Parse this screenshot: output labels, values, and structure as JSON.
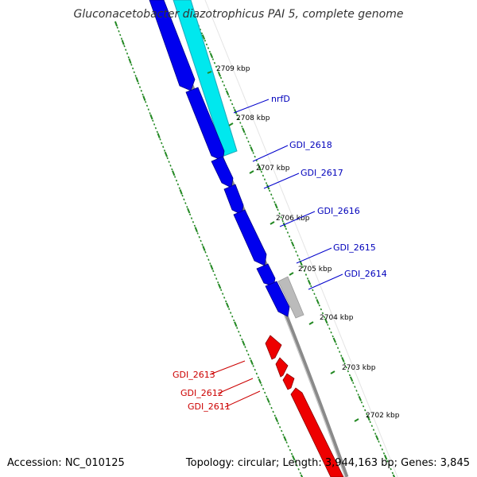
{
  "title": "Gluconacetobacter diazotrophicus PAI 5, complete genome",
  "accession": "Accession: NC_010125",
  "summary": "Topology: circular; Length: 3,944,163 bp; Genes: 3,845",
  "colors": {
    "forward_gene": "#0000ee",
    "reverse_gene": "#ee0000",
    "cds_cyan": "#00eeee",
    "other_gray": "#bbbbbb",
    "backbone": "#888888",
    "tick_green": "#228822",
    "blue_label": "#0000bb",
    "red_label": "#cc0000"
  },
  "kbp_ticks": [
    "2709 kbp",
    "2708 kbp",
    "2707 kbp",
    "2706 kbp",
    "2705 kbp",
    "2704 kbp",
    "2703 kbp",
    "2702 kbp"
  ],
  "gene_labels": {
    "nrfD": "nrfD",
    "g2618": "GDI_2618",
    "g2617": "GDI_2617",
    "g2616": "GDI_2616",
    "g2615": "GDI_2615",
    "g2614": "GDI_2614",
    "g2613": "GDI_2613",
    "g2612": "GDI_2612",
    "g2611": "GDI_2611"
  }
}
